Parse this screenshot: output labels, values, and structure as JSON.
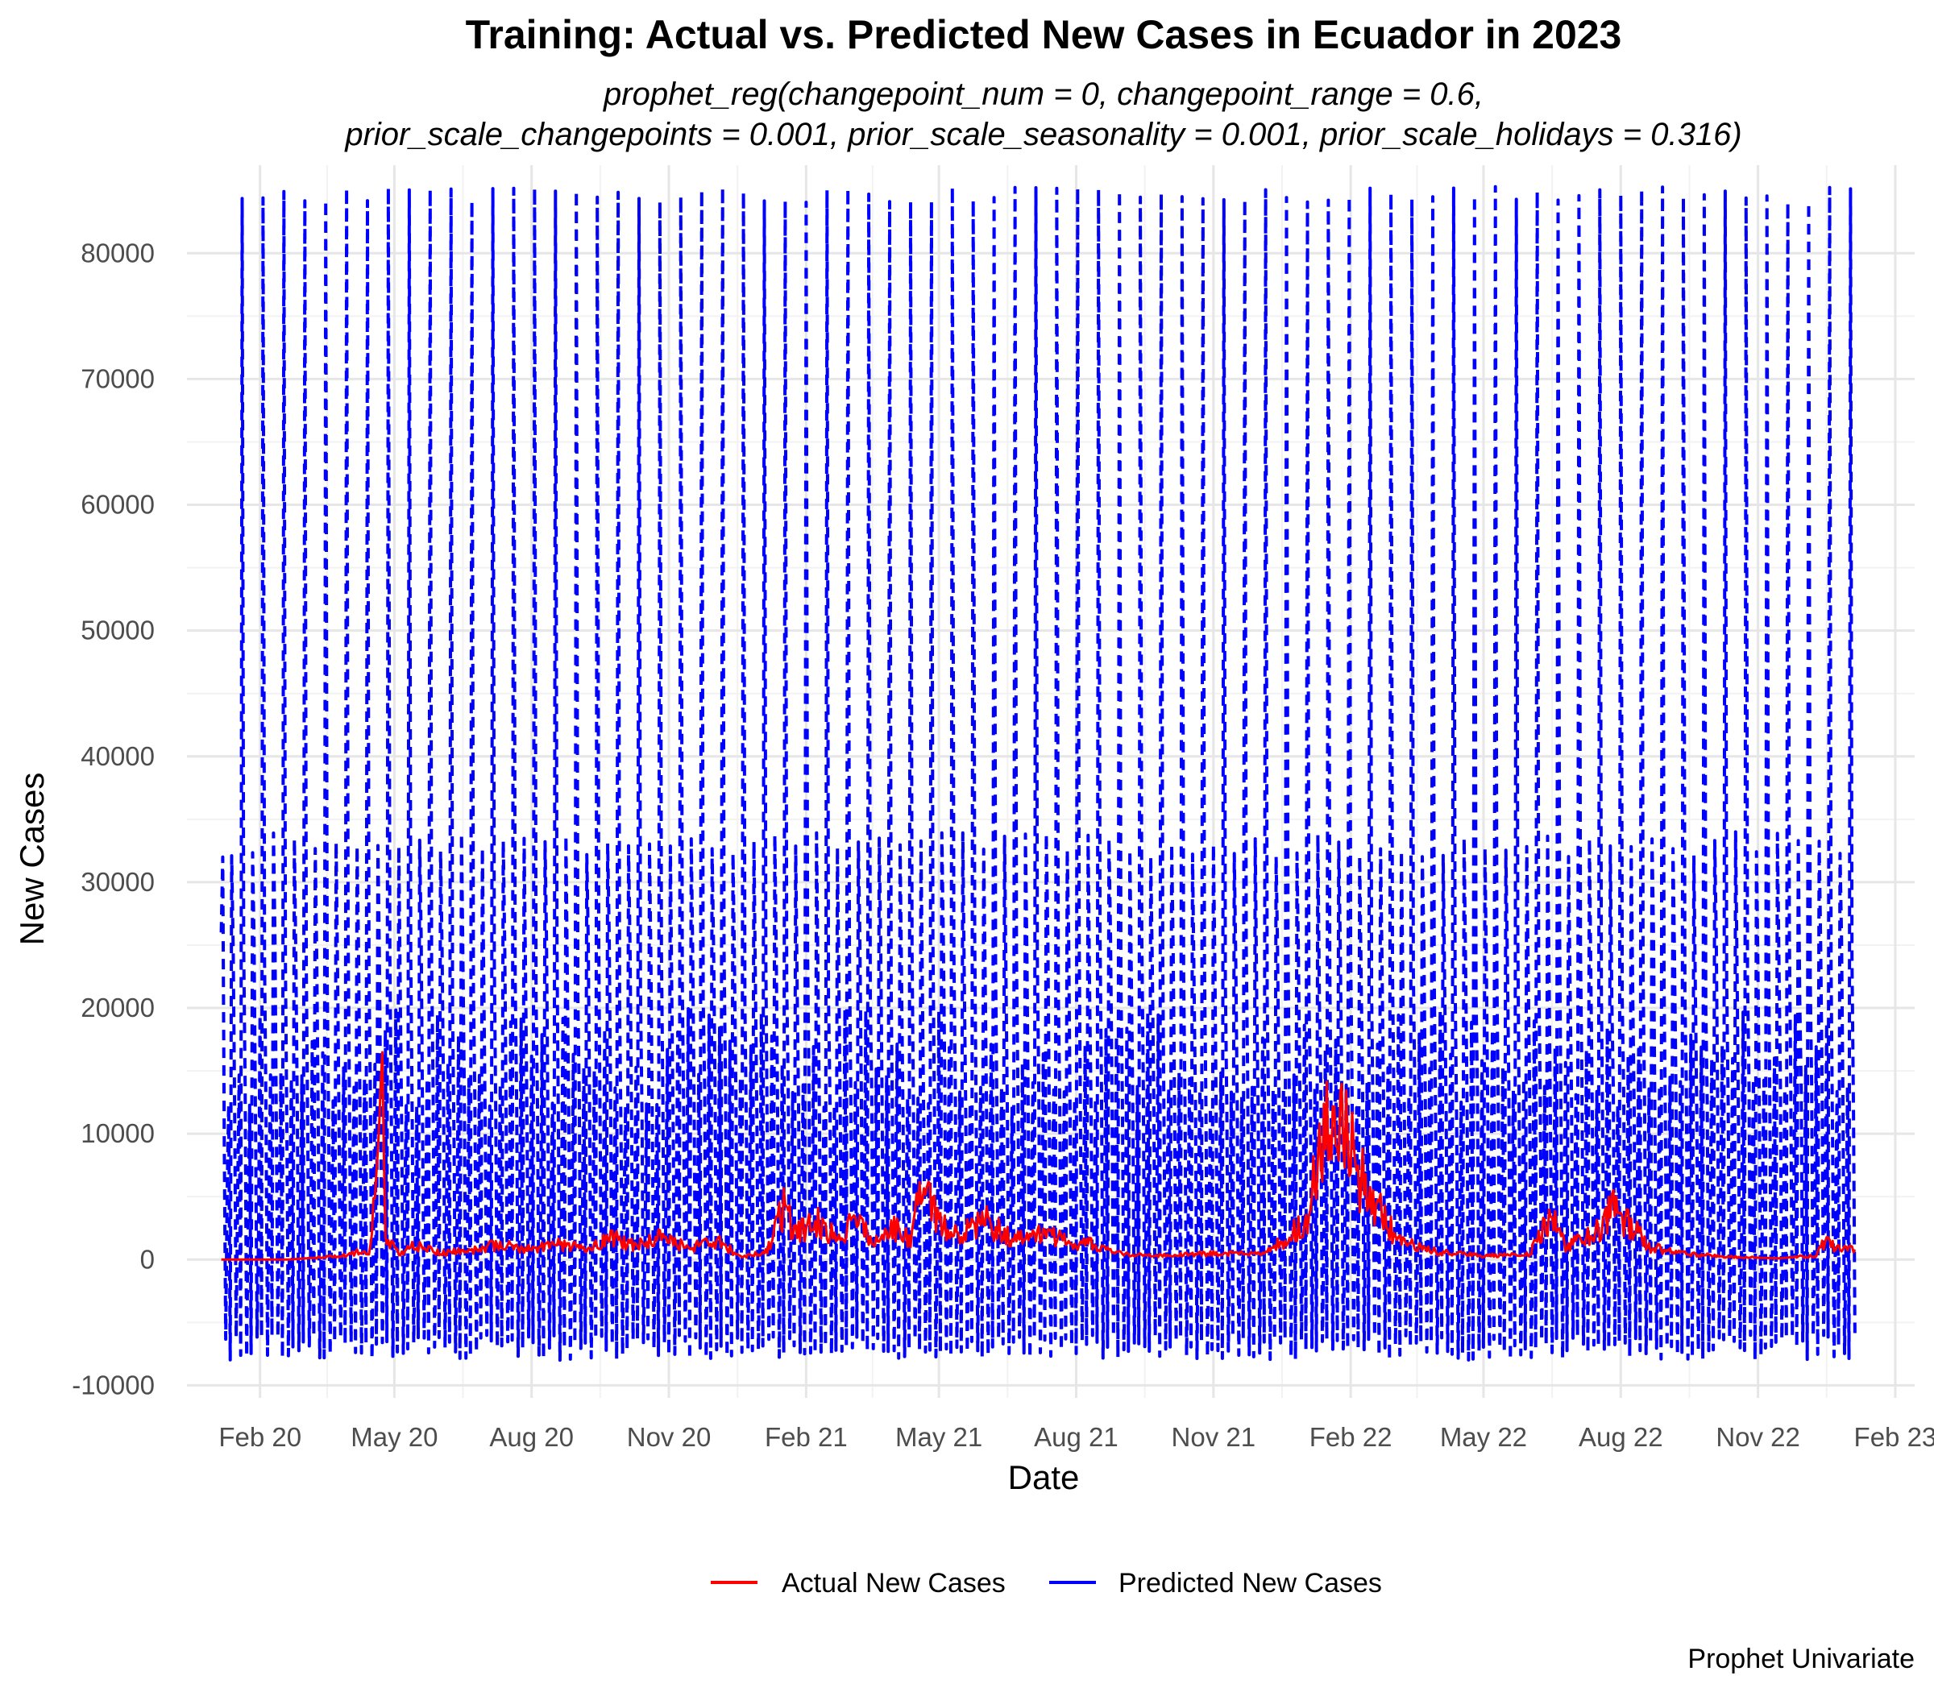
{
  "chart_data": {
    "type": "line",
    "title": "Training: Actual vs. Predicted New Cases in Ecuador in 2023",
    "subtitle_line1": "prophet_reg(changepoint_num = 0, changepoint_range = 0.6,",
    "subtitle_line2": "prior_scale_changepoints = 0.001, prior_scale_seasonality = 0.001, prior_scale_holidays = 0.316)",
    "xlabel": "Date",
    "ylabel": "New Cases",
    "caption": "Prophet Univariate",
    "xlim": [
      "2019-12-14",
      "2023-02-14"
    ],
    "ylim": [
      -11000,
      87000
    ],
    "x_ticks": [
      {
        "date": "2020-02-01",
        "label": "Feb 20"
      },
      {
        "date": "2020-05-01",
        "label": "May 20"
      },
      {
        "date": "2020-08-01",
        "label": "Aug 20"
      },
      {
        "date": "2020-11-01",
        "label": "Nov 20"
      },
      {
        "date": "2021-02-01",
        "label": "Feb 21"
      },
      {
        "date": "2021-05-01",
        "label": "May 21"
      },
      {
        "date": "2021-08-01",
        "label": "Aug 21"
      },
      {
        "date": "2021-11-01",
        "label": "Nov 21"
      },
      {
        "date": "2022-02-01",
        "label": "Feb 22"
      },
      {
        "date": "2022-05-01",
        "label": "May 22"
      },
      {
        "date": "2022-08-01",
        "label": "Aug 22"
      },
      {
        "date": "2022-11-01",
        "label": "Nov 22"
      },
      {
        "date": "2023-02-01",
        "label": "Feb 23"
      }
    ],
    "y_ticks": [
      -10000,
      0,
      10000,
      20000,
      30000,
      40000,
      50000,
      60000,
      70000,
      80000
    ],
    "y_tick_labels": [
      "-10000",
      "0",
      "10000",
      "20000",
      "30000",
      "40000",
      "50000",
      "60000",
      "70000",
      "80000"
    ],
    "grid": true,
    "legend_position": "bottom",
    "series": [
      {
        "name": "Actual New Cases",
        "color": "#ff0000",
        "style": "solid",
        "points": [
          [
            "2020-01-06",
            0
          ],
          [
            "2020-02-20",
            0
          ],
          [
            "2020-03-15",
            200
          ],
          [
            "2020-04-01",
            400
          ],
          [
            "2020-04-10",
            800
          ],
          [
            "2020-04-14",
            400
          ],
          [
            "2020-04-23",
            11500
          ],
          [
            "2020-04-25",
            1500
          ],
          [
            "2020-05-05",
            500
          ],
          [
            "2020-05-15",
            1200
          ],
          [
            "2020-06-01",
            500
          ],
          [
            "2020-06-20",
            700
          ],
          [
            "2020-07-10",
            1200
          ],
          [
            "2020-08-01",
            800
          ],
          [
            "2020-08-20",
            1200
          ],
          [
            "2020-09-10",
            900
          ],
          [
            "2020-09-20",
            1800
          ],
          [
            "2020-10-10",
            1100
          ],
          [
            "2020-10-25",
            1700
          ],
          [
            "2020-11-15",
            1000
          ],
          [
            "2020-12-05",
            1300
          ],
          [
            "2020-12-20",
            200
          ],
          [
            "2021-01-05",
            600
          ],
          [
            "2021-01-17",
            4000
          ],
          [
            "2021-01-25",
            2000
          ],
          [
            "2021-02-10",
            3000
          ],
          [
            "2021-02-25",
            1200
          ],
          [
            "2021-03-05",
            3300
          ],
          [
            "2021-03-20",
            1300
          ],
          [
            "2021-04-01",
            2500
          ],
          [
            "2021-04-12",
            1500
          ],
          [
            "2021-04-20",
            5900
          ],
          [
            "2021-05-01",
            2600
          ],
          [
            "2021-05-15",
            2000
          ],
          [
            "2021-06-01",
            3000
          ],
          [
            "2021-06-20",
            1500
          ],
          [
            "2021-07-10",
            2000
          ],
          [
            "2021-07-25",
            1500
          ],
          [
            "2021-08-10",
            1200
          ],
          [
            "2021-09-01",
            400
          ],
          [
            "2021-10-01",
            300
          ],
          [
            "2021-11-01",
            500
          ],
          [
            "2021-12-01",
            400
          ],
          [
            "2021-12-20",
            1500
          ],
          [
            "2022-01-05",
            4000
          ],
          [
            "2022-01-12",
            10500
          ],
          [
            "2022-01-20",
            9000
          ],
          [
            "2022-01-28",
            10200
          ],
          [
            "2022-02-05",
            7000
          ],
          [
            "2022-02-12",
            6000
          ],
          [
            "2022-02-22",
            3500
          ],
          [
            "2022-03-05",
            1500
          ],
          [
            "2022-04-01",
            600
          ],
          [
            "2022-05-01",
            300
          ],
          [
            "2022-06-01",
            400
          ],
          [
            "2022-06-15",
            3800
          ],
          [
            "2022-06-25",
            1000
          ],
          [
            "2022-07-15",
            2000
          ],
          [
            "2022-07-25",
            4000
          ],
          [
            "2022-08-05",
            3000
          ],
          [
            "2022-08-20",
            1000
          ],
          [
            "2022-09-10",
            500
          ],
          [
            "2022-10-15",
            200
          ],
          [
            "2022-11-15",
            100
          ],
          [
            "2022-12-10",
            300
          ],
          [
            "2022-12-15",
            1300
          ],
          [
            "2022-12-25",
            1000
          ],
          [
            "2023-01-05",
            800
          ]
        ]
      },
      {
        "name": "Predicted New Cases",
        "color": "#0000ff",
        "style": "dashed",
        "pattern": "weekly oscillation with large holiday spikes",
        "start_date": "2020-01-06",
        "end_date": "2023-01-05",
        "spike_peak_range": [
          84000,
          85300
        ],
        "secondary_peak_range": [
          32000,
          34000
        ],
        "trough_range": [
          -8000,
          -6000
        ]
      }
    ]
  }
}
